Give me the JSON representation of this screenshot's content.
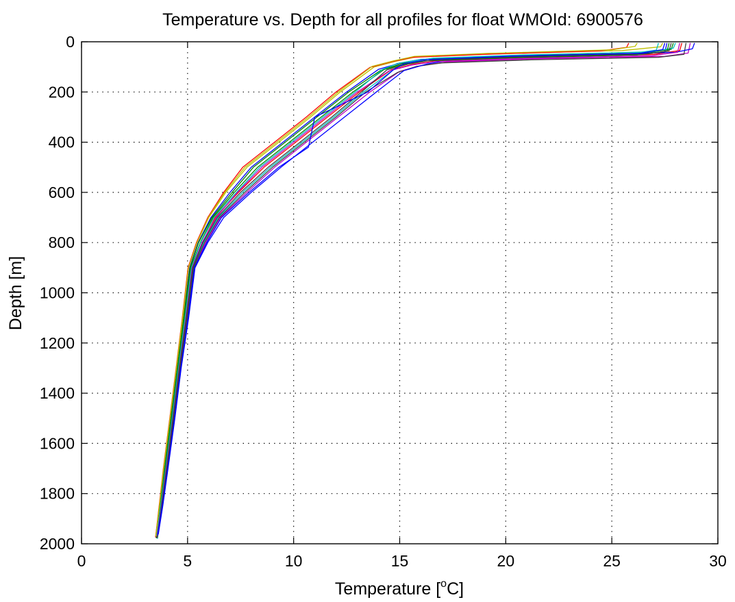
{
  "chart_data": {
    "type": "line",
    "title": "Temperature vs. Depth for all profiles for float WMOId: 6900576",
    "xlabel": {
      "prefix": "Temperature [",
      "superscript": "o",
      "suffix": "C]"
    },
    "ylabel": "Depth [m]",
    "xlim": [
      0,
      30
    ],
    "ylim": [
      0,
      2000
    ],
    "y_reversed": true,
    "grid": true,
    "x_ticks": [
      "0",
      "5",
      "10",
      "15",
      "20",
      "25",
      "30"
    ],
    "y_ticks": [
      "0",
      "200",
      "400",
      "600",
      "800",
      "1000",
      "1200",
      "1400",
      "1600",
      "1800",
      "2000"
    ],
    "colors": [
      "#0000ff",
      "#008000",
      "#ff0000",
      "#00bfbf",
      "#bf00bf",
      "#bfbf00",
      "#3f3f3f"
    ],
    "series": [
      {
        "x": [
          27.6,
          27.5,
          26.0,
          20.0,
          16.0,
          15.0,
          14.0,
          12.5,
          11.0,
          9.5,
          8.0,
          7.0,
          6.1,
          5.5,
          5.1,
          4.8,
          4.5,
          4.2,
          3.9,
          3.7,
          3.5
        ],
        "y": [
          5,
          40,
          50,
          60,
          70,
          85,
          110,
          200,
          300,
          400,
          500,
          600,
          700,
          800,
          900,
          1100,
          1300,
          1500,
          1700,
          1850,
          1975
        ]
      },
      {
        "x": [
          27.9,
          27.8,
          26.5,
          20.5,
          16.4,
          15.3,
          14.3,
          12.8,
          11.3,
          9.8,
          8.3,
          7.2,
          6.2,
          5.6,
          5.15,
          4.85,
          4.55,
          4.25,
          3.95,
          3.72,
          3.55
        ],
        "y": [
          5,
          30,
          45,
          55,
          68,
          82,
          108,
          200,
          300,
          400,
          500,
          600,
          700,
          800,
          900,
          1100,
          1300,
          1500,
          1700,
          1850,
          1968
        ]
      },
      {
        "x": [
          28.3,
          28.2,
          27.0,
          21.0,
          16.8,
          15.6,
          14.6,
          13.1,
          11.6,
          10.1,
          8.6,
          7.4,
          6.3,
          5.7,
          5.2,
          4.9,
          4.6,
          4.3,
          4.0,
          3.75,
          3.52
        ],
        "y": [
          5,
          35,
          50,
          62,
          75,
          90,
          112,
          200,
          300,
          400,
          500,
          600,
          700,
          800,
          900,
          1100,
          1300,
          1500,
          1700,
          1850,
          1972
        ]
      },
      {
        "x": [
          28.0,
          27.9,
          26.8,
          20.8,
          16.6,
          15.5,
          14.8,
          13.3,
          11.9,
          10.4,
          8.9,
          7.6,
          6.45,
          5.75,
          5.25,
          4.95,
          4.62,
          4.32,
          4.02,
          3.78,
          3.58
        ],
        "y": [
          5,
          25,
          40,
          52,
          65,
          80,
          105,
          200,
          300,
          400,
          500,
          600,
          700,
          800,
          900,
          1100,
          1300,
          1500,
          1700,
          1850,
          1980
        ]
      },
      {
        "x": [
          28.7,
          28.6,
          27.5,
          21.5,
          17.2,
          16.0,
          15.0,
          13.6,
          12.1,
          10.6,
          9.1,
          7.8,
          6.55,
          5.85,
          5.3,
          5.0,
          4.66,
          4.36,
          4.05,
          3.8,
          3.6
        ],
        "y": [
          5,
          45,
          58,
          68,
          80,
          95,
          118,
          200,
          300,
          400,
          500,
          600,
          700,
          800,
          900,
          1100,
          1300,
          1500,
          1700,
          1850,
          1965
        ]
      },
      {
        "x": [
          27.4,
          27.3,
          25.5,
          19.5,
          15.8,
          14.8,
          13.8,
          12.2,
          10.8,
          9.3,
          7.8,
          6.8,
          6.0,
          5.45,
          5.05,
          4.78,
          4.48,
          4.18,
          3.88,
          3.68,
          3.5
        ],
        "y": [
          5,
          20,
          35,
          48,
          60,
          78,
          100,
          200,
          300,
          400,
          500,
          600,
          700,
          800,
          900,
          1100,
          1300,
          1500,
          1700,
          1850,
          1970
        ]
      },
      {
        "x": [
          28.5,
          28.4,
          27.2,
          21.2,
          17.0,
          15.8,
          14.9,
          13.4,
          12.0,
          10.5,
          9.0,
          7.7,
          6.5,
          5.8,
          5.28,
          4.98,
          4.64,
          4.34,
          4.04,
          3.79,
          3.57
        ],
        "y": [
          5,
          50,
          62,
          72,
          84,
          98,
          122,
          200,
          300,
          400,
          500,
          600,
          700,
          800,
          900,
          1100,
          1300,
          1500,
          1700,
          1850,
          1976
        ]
      },
      {
        "x": [
          28.9,
          28.8,
          28.0,
          22.0,
          17.5,
          16.3,
          15.2,
          13.9,
          12.4,
          10.9,
          9.4,
          8.0,
          6.7,
          5.95,
          5.35,
          5.05,
          4.7,
          4.4,
          4.08,
          3.83,
          3.62
        ],
        "y": [
          5,
          28,
          42,
          55,
          70,
          88,
          115,
          200,
          300,
          400,
          500,
          600,
          700,
          800,
          900,
          1100,
          1300,
          1500,
          1700,
          1850,
          1962
        ]
      },
      {
        "x": [
          27.7,
          27.6,
          26.2,
          20.2,
          16.2,
          15.1,
          14.1,
          12.6,
          11.1,
          9.6,
          8.1,
          7.1,
          6.15,
          5.52,
          5.12,
          4.82,
          4.52,
          4.22,
          3.92,
          3.71,
          3.53
        ],
        "y": [
          5,
          38,
          52,
          64,
          76,
          92,
          114,
          200,
          300,
          400,
          500,
          600,
          700,
          800,
          900,
          1100,
          1300,
          1500,
          1700,
          1850,
          1978
        ]
      },
      {
        "x": [
          25.8,
          25.7,
          24.5,
          19.0,
          15.6,
          14.6,
          13.6,
          12.0,
          10.6,
          9.1,
          7.6,
          6.7,
          5.95,
          5.42,
          5.02,
          4.75,
          4.46,
          4.16,
          3.86,
          3.66,
          3.49
        ],
        "y": [
          5,
          22,
          36,
          50,
          62,
          80,
          102,
          200,
          300,
          400,
          500,
          600,
          700,
          800,
          900,
          1100,
          1300,
          1500,
          1700,
          1850,
          1974
        ]
      },
      {
        "x": [
          27.2,
          27.1,
          25.8,
          19.8,
          15.9,
          14.9,
          14.2,
          12.9,
          11.4,
          9.9,
          8.4,
          7.3,
          6.25,
          5.62,
          5.18,
          4.88,
          4.57,
          4.27,
          3.97,
          3.73,
          3.54
        ],
        "y": [
          5,
          33,
          48,
          58,
          72,
          86,
          110,
          200,
          300,
          400,
          500,
          600,
          700,
          800,
          900,
          1100,
          1300,
          1500,
          1700,
          1850,
          1969
        ]
      },
      {
        "x": [
          28.2,
          28.1,
          26.9,
          20.9,
          16.7,
          15.55,
          14.5,
          13.0,
          11.5,
          10.0,
          8.5,
          7.35,
          6.35,
          5.68,
          5.22,
          4.92,
          4.6,
          4.3,
          3.99,
          3.76,
          3.56
        ],
        "y": [
          5,
          42,
          55,
          66,
          78,
          93,
          116,
          200,
          300,
          400,
          500,
          600,
          700,
          800,
          900,
          1100,
          1300,
          1500,
          1700,
          1850,
          1973
        ]
      },
      {
        "x": [
          26.2,
          26.1,
          25.0,
          19.2,
          15.7,
          14.7,
          13.7,
          12.1,
          10.7,
          9.2,
          7.7,
          6.75,
          5.98,
          5.44,
          5.04,
          4.76,
          4.47,
          4.17,
          3.87,
          3.67,
          3.5
        ],
        "y": [
          5,
          18,
          32,
          46,
          58,
          76,
          98,
          200,
          300,
          400,
          500,
          600,
          700,
          800,
          900,
          1100,
          1300,
          1500,
          1700,
          1850,
          1971
        ]
      },
      {
        "x": [
          27.8,
          27.7,
          26.6,
          20.6,
          16.5,
          15.4,
          14.4,
          13.2,
          11.8,
          10.3,
          8.8,
          7.5,
          6.4,
          5.72,
          5.24,
          4.94,
          4.61,
          4.31,
          4.01,
          3.77,
          3.57
        ],
        "y": [
          5,
          36,
          49,
          60,
          73,
          89,
          112,
          200,
          300,
          400,
          500,
          600,
          700,
          800,
          900,
          1100,
          1300,
          1500,
          1700,
          1850,
          1977
        ]
      },
      {
        "x": [
          27.5,
          27.4,
          26.3,
          20.3,
          16.3,
          15.2,
          14.7,
          13.5,
          11.0,
          10.7,
          9.3,
          7.9,
          6.6,
          5.9,
          5.32,
          5.02,
          4.68,
          4.38,
          4.06,
          3.81,
          3.59
        ],
        "y": [
          5,
          31,
          46,
          57,
          71,
          87,
          112,
          200,
          300,
          420,
          500,
          600,
          700,
          800,
          900,
          1100,
          1300,
          1500,
          1700,
          1850,
          1966
        ]
      }
    ]
  }
}
